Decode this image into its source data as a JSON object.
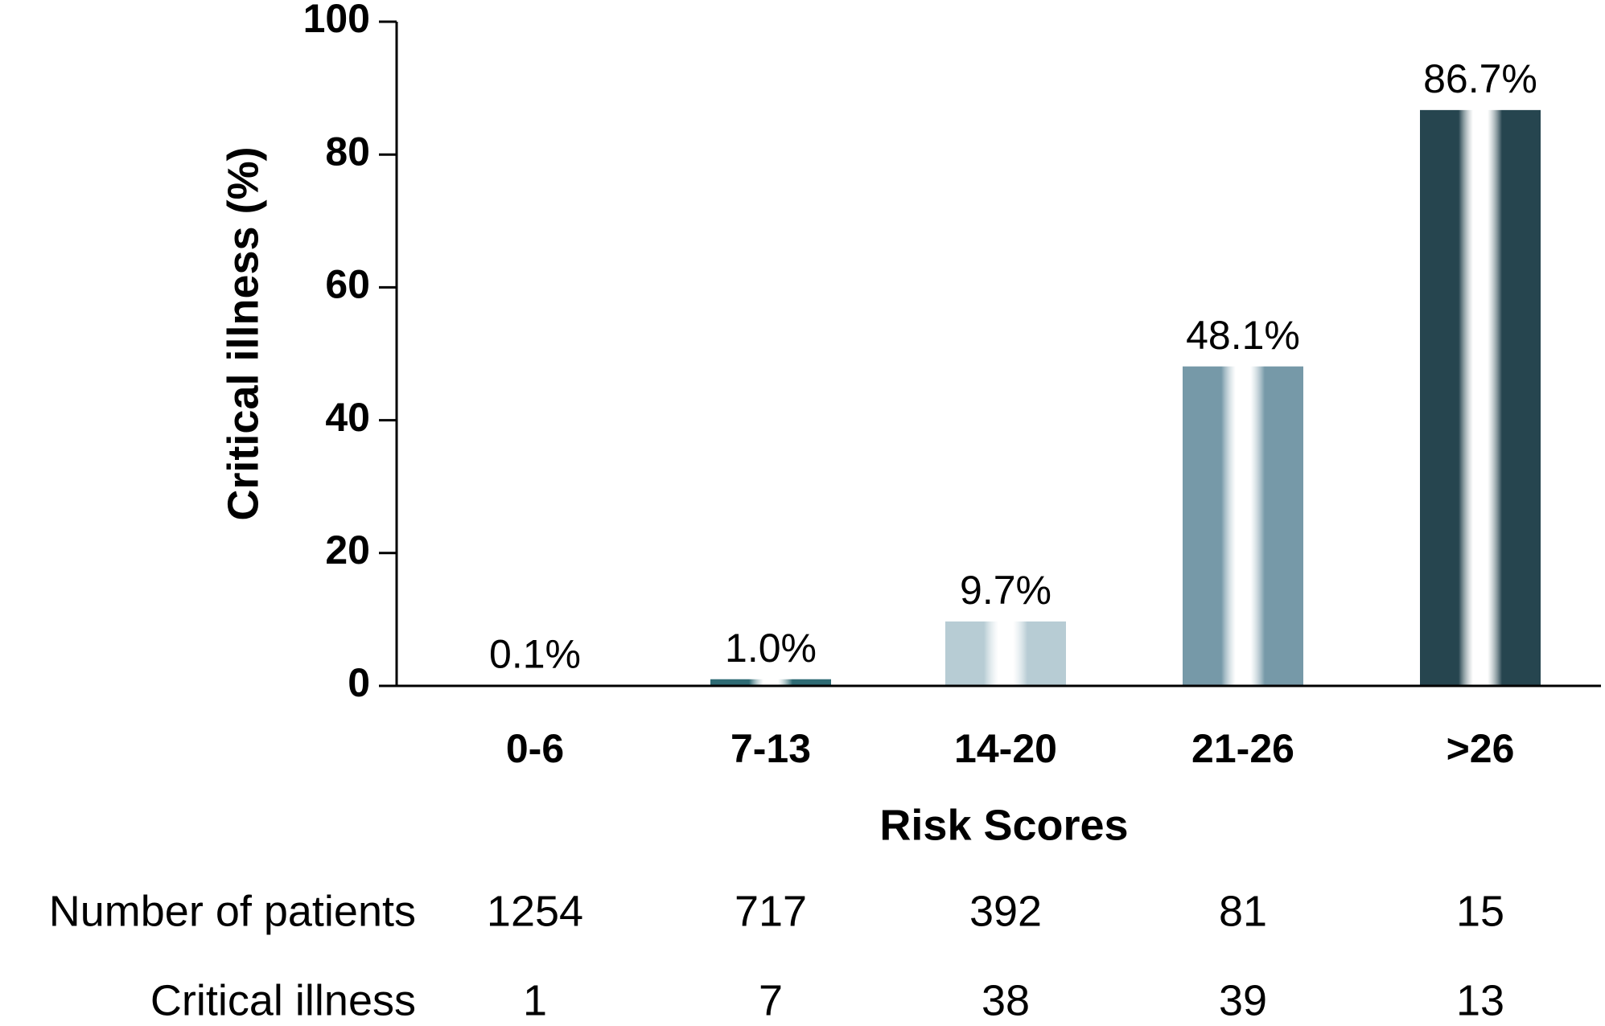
{
  "chart_data": {
    "type": "bar",
    "title": "",
    "xlabel": "Risk Scores",
    "ylabel": "Critical illness (%)",
    "ylim": [
      0,
      100
    ],
    "yticks": [
      0,
      20,
      40,
      60,
      80,
      100
    ],
    "grid": false,
    "legend": "none",
    "categories": [
      "0-6",
      "7-13",
      "14-20",
      "21-26",
      ">26"
    ],
    "values": [
      0.1,
      1.0,
      9.7,
      48.1,
      86.7
    ],
    "data_labels": [
      "0.1%",
      "1.0%",
      "9.7%",
      "48.1%",
      "86.7%"
    ],
    "bar_colors": [
      "#e9f2f5",
      "#2e6b74",
      "#b7ccd4",
      "#7699a8",
      "#26454f"
    ],
    "table": {
      "rows": [
        {
          "label": "Number of patients",
          "values": [
            "1254",
            "717",
            "392",
            "81",
            "15"
          ]
        },
        {
          "label": "Critical illness",
          "values": [
            "1",
            "7",
            "38",
            "39",
            "13"
          ]
        }
      ]
    }
  }
}
